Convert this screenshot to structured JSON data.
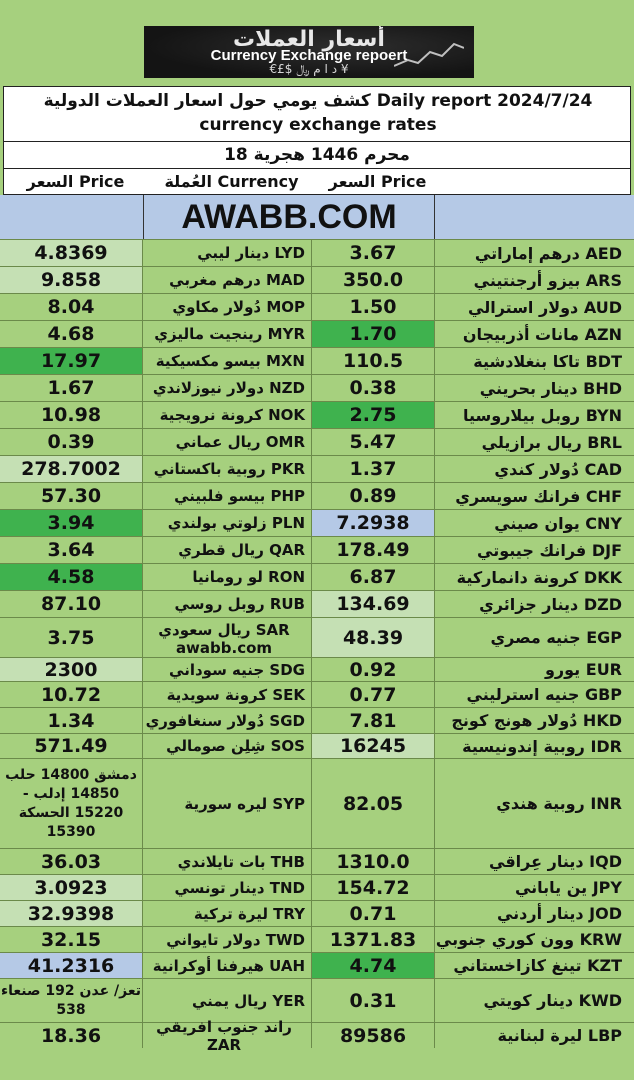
{
  "banner": {
    "arabic_title": "أسعار العملات",
    "english_title": "Currency Exchange repoert",
    "symbols": "€£$ د ا م ﷼ ¥"
  },
  "title": {
    "line1": "كشف يومي حول اسعار العملات الدولية Daily report 2024/7/24",
    "line2": "currency exchange rates"
  },
  "hijri_date": "18 محرم 1446 هجرية",
  "headers": {
    "left_price": "السعر Price",
    "left_currency": "العُملة Currency",
    "right_price": "السعر Price"
  },
  "site": "AWABB.COM",
  "colors": {
    "base": "#a6d07e",
    "light": "#c5e0b4",
    "dark": "#3fb24e",
    "blue": "#b5c9e6"
  },
  "rows": [
    {
      "rname": "درهم إماراتي AED",
      "rprice": "3.67",
      "lname": "دينار ليبي LYD",
      "lprice": "4.8369",
      "lbg": "light",
      "rbg": ""
    },
    {
      "rname": "بيزو أرجنتيني ARS",
      "rprice": "350.0",
      "lname": "درهم مغربي MAD",
      "lprice": "9.858",
      "lbg": "light",
      "rbg": ""
    },
    {
      "rname": "دولار استرالي AUD",
      "rprice": "1.50",
      "lname": "دُولار مكاوي MOP",
      "lprice": "8.04",
      "lbg": "",
      "rbg": ""
    },
    {
      "rname": "مانات أذربيجان AZN",
      "rprice": "1.70",
      "lname": "رينجيت ماليزي MYR",
      "lprice": "4.68",
      "lbg": "",
      "rbg": "dark"
    },
    {
      "rname": "تاكا بنغلادشية BDT",
      "rprice": "110.5",
      "lname": "بيسو مكسيكية MXN",
      "lprice": "17.97",
      "lbg": "dark",
      "rbg": ""
    },
    {
      "rname": "دينار بحريني BHD",
      "rprice": "0.38",
      "lname": "دولار نيوزلاندي NZD",
      "lprice": "1.67",
      "lbg": "",
      "rbg": ""
    },
    {
      "rname": "روبل بيلاروسيا BYN",
      "rprice": "2.75",
      "lname": "كرونة نرويجية NOK",
      "lprice": "10.98",
      "lbg": "",
      "rbg": "dark"
    },
    {
      "rname": "ريال برازيلي BRL",
      "rprice": "5.47",
      "lname": "ريال عماني OMR",
      "lprice": "0.39",
      "lbg": "",
      "rbg": ""
    },
    {
      "rname": "دُولار كندي CAD",
      "rprice": "1.37",
      "lname": "روبية باكستاني PKR",
      "lprice": "278.7002",
      "lbg": "light",
      "rbg": ""
    },
    {
      "rname": "فرانك سويسري CHF",
      "rprice": "0.89",
      "lname": "بيسو فلبيني PHP",
      "lprice": "57.30",
      "lbg": "",
      "rbg": ""
    },
    {
      "rname": "يوان صيني CNY",
      "rprice": "7.2938",
      "lname": "زلوتي بولندي PLN",
      "lprice": "3.94",
      "lbg": "dark",
      "rbg": "blue"
    },
    {
      "rname": "فرانك جيبوتي DJF",
      "rprice": "178.49",
      "lname": "ريال قطري QAR",
      "lprice": "3.64",
      "lbg": "",
      "rbg": ""
    },
    {
      "rname": "كرونة دانماركية DKK",
      "rprice": "6.87",
      "lname": "لو رومانيا RON",
      "lprice": "4.58",
      "lbg": "dark",
      "rbg": ""
    },
    {
      "rname": "دينار جزائري DZD",
      "rprice": "134.69",
      "lname": "روبل روسي RUB",
      "lprice": "87.10",
      "lbg": "",
      "rbg": "light"
    },
    {
      "rname": "جنيه مصري EGP",
      "rprice": "48.39",
      "lname": "ريال سعودي SAR",
      "lname2": "awabb.com",
      "lprice": "3.75",
      "lbg": "",
      "rbg": "light"
    },
    {
      "rname": "يورو EUR",
      "rprice": "0.92",
      "lname": "جنيه سوداني SDG",
      "lprice": "2300",
      "lbg": "light",
      "rbg": ""
    },
    {
      "rname": "جنيه استرليني GBP",
      "rprice": "0.77",
      "lname": "كرونة سويدية SEK",
      "lprice": "10.72",
      "lbg": "",
      "rbg": ""
    },
    {
      "rname": "دُولار هونج كونج HKD",
      "rprice": "7.81",
      "lname": "دُولار سنغافوري SGD",
      "lprice": "1.34",
      "lbg": "",
      "rbg": ""
    },
    {
      "rname": "روبية إندونيسية IDR",
      "rprice": "16245",
      "lname": "شِلِن صومالي SOS",
      "lprice": "571.49",
      "lbg": "",
      "rbg": "light"
    },
    {
      "rname": "روبية هندي INR",
      "rprice": "82.05",
      "lname": "ليره سورية SYP",
      "lprice": "دمشق 14800 حلب 14850 إدلب - 15220 الحسكة 15390",
      "lbg": "",
      "rbg": ""
    },
    {
      "rname": "دينار عِراقي IQD",
      "rprice": "1310.0",
      "lname": "بات تايلاندي THB",
      "lprice": "36.03",
      "lbg": "",
      "rbg": ""
    },
    {
      "rname": "ين ياباني JPY",
      "rprice": "154.72",
      "lname": "دينار تونسي TND",
      "lprice": "3.0923",
      "lbg": "light",
      "rbg": ""
    },
    {
      "rname": "دينار أردني JOD",
      "rprice": "0.71",
      "lname": "ليرة تركية TRY",
      "lprice": "32.9398",
      "lbg": "light",
      "rbg": ""
    },
    {
      "rname": "وون كوري جنوبي KRW",
      "rprice": "1371.83",
      "lname": "دولار تايواني TWD",
      "lprice": "32.15",
      "lbg": "",
      "rbg": ""
    },
    {
      "rname": "تينغ كازاخستاني KZT",
      "rprice": "4.74",
      "lname": "هيرفنا أوكرانية UAH",
      "lprice": "41.2316",
      "lbg": "blue",
      "rbg": "dark"
    },
    {
      "rname": "دينار كويتي KWD",
      "rprice": "0.31",
      "lname": "ريال يمني YER",
      "lprice": "تعز/ عدن 192 صنعاء 538",
      "lbg": "",
      "rbg": ""
    },
    {
      "rname": "ليرة لبنانية LBP",
      "rprice": "89586",
      "lname": "راند جنوب افريقي ZAR",
      "lprice": "18.36",
      "lbg": "",
      "rbg": ""
    }
  ]
}
